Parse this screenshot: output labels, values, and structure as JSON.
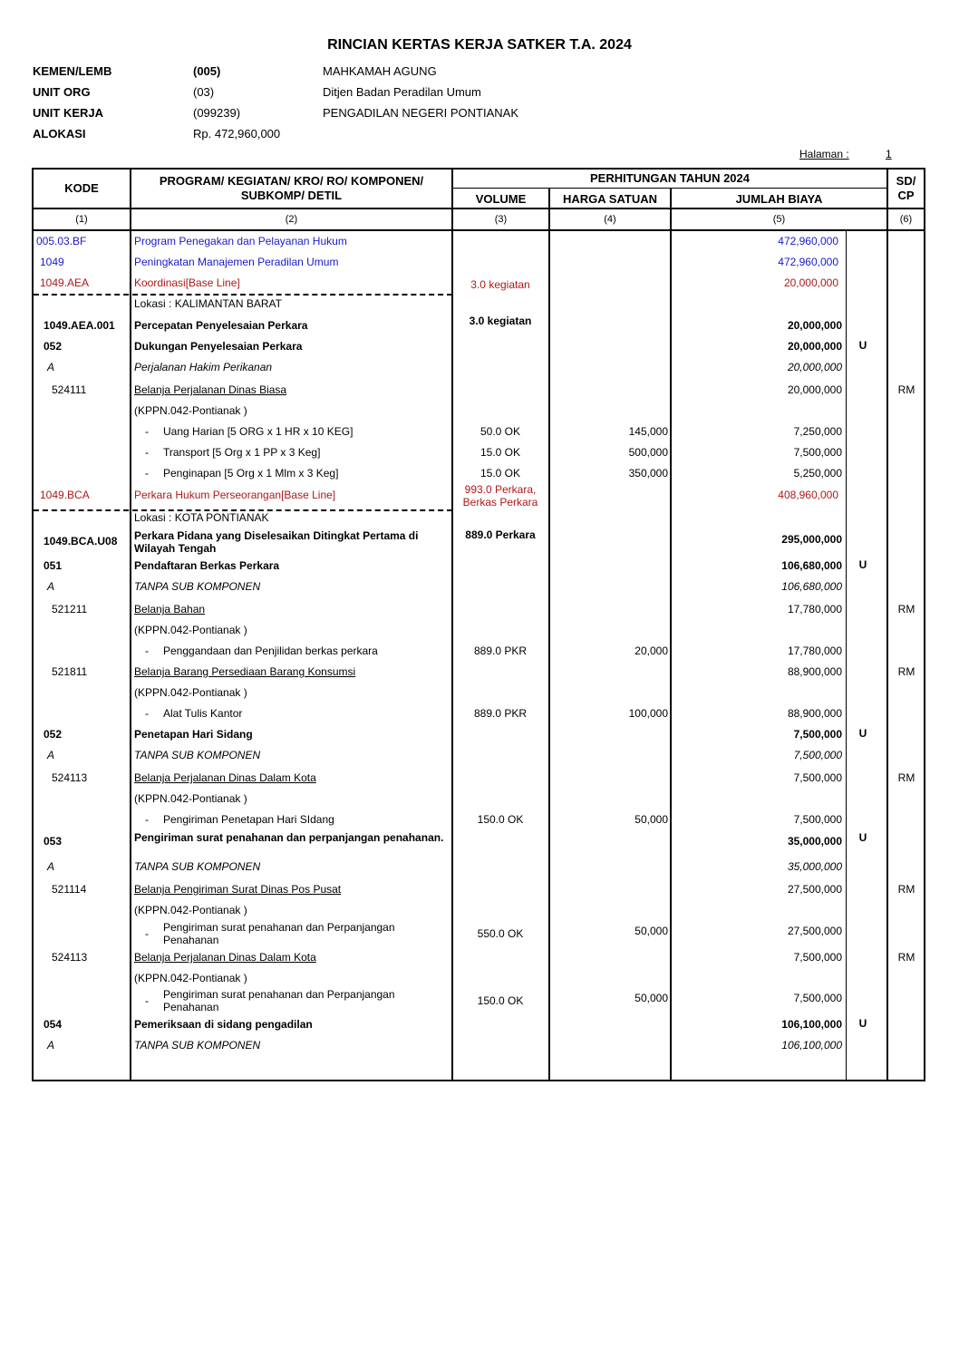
{
  "title": "RINCIAN KERTAS KERJA SATKER T.A. 2024",
  "meta": [
    {
      "label": "KEMEN/LEMB",
      "code": "(005)",
      "value": "MAHKAMAH AGUNG",
      "code_bold": true
    },
    {
      "label": "UNIT ORG",
      "code": "(03)",
      "value": "Ditjen Badan Peradilan Umum"
    },
    {
      "label": "UNIT KERJA",
      "code": "(099239)",
      "value": "PENGADILAN NEGERI PONTIANAK"
    },
    {
      "label": "ALOKASI",
      "code": "Rp.    472,960,000",
      "value": ""
    }
  ],
  "page": {
    "label": "Halaman :",
    "number": "1"
  },
  "header": {
    "kode": "KODE",
    "uraian": "PROGRAM/ KEGIATAN/ KRO/ RO/ KOMPONEN/ SUBKOMP/ DETIL",
    "perhitungan": "PERHITUNGAN TAHUN 2024",
    "volume": "VOLUME",
    "harga": "HARGA SATUAN",
    "jumlah": "JUMLAH BIAYA",
    "sdcp": "SD/ CP",
    "numbers": [
      "(1)",
      "(2)",
      "(3)",
      "(4)",
      "(5)",
      "(6)"
    ]
  },
  "colors": {
    "program": "#1a1acc",
    "kro": "#b01818"
  },
  "rows": [
    {
      "kode": "005.03.BF",
      "uraian": "Program Penegakan dan Pelayanan Hukum",
      "jumlah": "472,960,000",
      "style": "blue"
    },
    {
      "kode": "1049",
      "uraian": "Peningkatan Manajemen Peradilan Umum",
      "jumlah": "472,960,000",
      "style": "blue"
    },
    {
      "kode": "1049.AEA",
      "uraian": "Koordinasi[Base Line]",
      "volume": "3.0 kegiatan",
      "jumlah": "20,000,000",
      "style": "red"
    },
    {
      "uraian": "Lokasi : KALIMANTAN BARAT",
      "style": "plain"
    },
    {
      "kode": "1049.AEA.001",
      "uraian": "Percepatan Penyelesaian Perkara",
      "volume": "3.0 kegiatan",
      "jumlah": "20,000,000",
      "style": "bold"
    },
    {
      "kode": "052",
      "uraian": "Dukungan Penyelesaian Perkara",
      "jumlah": "20,000,000",
      "flag": "U",
      "style": "bold"
    },
    {
      "kode": "A",
      "uraian": "Perjalanan Hakim Perikanan",
      "jumlah": "20,000,000",
      "style": "ital"
    },
    {
      "kode": "524111",
      "uraian": "Belanja Perjalanan Dinas Biasa",
      "jumlah": "20,000,000",
      "sdcp": "RM",
      "style": "akun"
    },
    {
      "uraian": "(KPPN.042-Pontianak )",
      "style": "plain"
    },
    {
      "uraian": "Uang Harian [5 ORG x 1 HR x 10 KEG]",
      "volume": "50.0 OK",
      "harga": "145,000",
      "jumlah": "7,250,000",
      "style": "item"
    },
    {
      "uraian": "Transport [5 Org x 1 PP x 3 Keg]",
      "volume": "15.0 OK",
      "harga": "500,000",
      "jumlah": "7,500,000",
      "style": "item"
    },
    {
      "uraian": "Penginapan [5 Org x 1 Mlm x 3 Keg]",
      "volume": "15.0 OK",
      "harga": "350,000",
      "jumlah": "5,250,000",
      "style": "item"
    },
    {
      "kode": "1049.BCA",
      "uraian": "Perkara Hukum Perseorangan[Base Line]",
      "volume": "993.0 Perkara, Berkas Perkara",
      "jumlah": "408,960,000",
      "style": "red"
    },
    {
      "uraian": "Lokasi : KOTA PONTIANAK",
      "style": "plain"
    },
    {
      "kode": "1049.BCA.U08",
      "uraian": "Perkara Pidana yang Diselesaikan Ditingkat Pertama di Wilayah Tengah",
      "volume": "889.0 Perkara",
      "jumlah": "295,000,000",
      "style": "bold"
    },
    {
      "kode": "051",
      "uraian": "Pendaftaran Berkas Perkara",
      "jumlah": "106,680,000",
      "flag": "U",
      "style": "bold"
    },
    {
      "kode": "A",
      "uraian": "TANPA SUB KOMPONEN",
      "jumlah": "106,680,000",
      "style": "ital"
    },
    {
      "kode": "521211",
      "uraian": "Belanja Bahan",
      "jumlah": "17,780,000",
      "sdcp": "RM",
      "style": "akun"
    },
    {
      "uraian": "(KPPN.042-Pontianak )",
      "style": "plain"
    },
    {
      "uraian": "Penggandaan dan Penjilidan berkas perkara",
      "volume": "889.0 PKR",
      "harga": "20,000",
      "jumlah": "17,780,000",
      "style": "item"
    },
    {
      "kode": "521811",
      "uraian": "Belanja Barang Persediaan Barang Konsumsi",
      "jumlah": "88,900,000",
      "sdcp": "RM",
      "style": "akun"
    },
    {
      "uraian": "(KPPN.042-Pontianak )",
      "style": "plain"
    },
    {
      "uraian": "Alat Tulis Kantor",
      "volume": "889.0 PKR",
      "harga": "100,000",
      "jumlah": "88,900,000",
      "style": "item"
    },
    {
      "kode": "052",
      "uraian": "Penetapan Hari Sidang",
      "jumlah": "7,500,000",
      "flag": "U",
      "style": "bold"
    },
    {
      "kode": "A",
      "uraian": "TANPA SUB KOMPONEN",
      "jumlah": "7,500,000",
      "style": "ital"
    },
    {
      "kode": "524113",
      "uraian": "Belanja Perjalanan Dinas Dalam Kota",
      "jumlah": "7,500,000",
      "sdcp": "RM",
      "style": "akun"
    },
    {
      "uraian": "(KPPN.042-Pontianak )",
      "style": "plain"
    },
    {
      "uraian": "Pengiriman Penetapan Hari SIdang",
      "volume": "150.0 OK",
      "harga": "50,000",
      "jumlah": "7,500,000",
      "style": "item"
    },
    {
      "kode": "053",
      "uraian": "Pengiriman surat penahanan dan perpanjangan penahanan.",
      "jumlah": "35,000,000",
      "flag": "U",
      "style": "bold"
    },
    {
      "kode": "A",
      "uraian": "TANPA SUB KOMPONEN",
      "jumlah": "35,000,000",
      "style": "ital"
    },
    {
      "kode": "521114",
      "uraian": "Belanja Pengiriman Surat Dinas Pos Pusat",
      "jumlah": "27,500,000",
      "sdcp": "RM",
      "style": "akun"
    },
    {
      "uraian": "(KPPN.042-Pontianak )",
      "style": "plain"
    },
    {
      "uraian": "Pengiriman surat penahanan dan Perpanjangan Penahanan",
      "volume": "550.0 OK",
      "harga": "50,000",
      "jumlah": "27,500,000",
      "style": "item"
    },
    {
      "kode": "524113",
      "uraian": "Belanja Perjalanan Dinas Dalam Kota",
      "jumlah": "7,500,000",
      "sdcp": "RM",
      "style": "akun"
    },
    {
      "uraian": "(KPPN.042-Pontianak )",
      "style": "plain"
    },
    {
      "uraian": "Pengiriman surat penahanan dan Perpanjangan Penahanan",
      "volume": "150.0 OK",
      "harga": "50,000",
      "jumlah": "7,500,000",
      "style": "item"
    },
    {
      "kode": "054",
      "uraian": "Pemeriksaan di sidang pengadilan",
      "jumlah": "106,100,000",
      "flag": "U",
      "style": "bold"
    },
    {
      "kode": "A",
      "uraian": "TANPA SUB KOMPONEN",
      "jumlah": "106,100,000",
      "style": "ital"
    }
  ]
}
